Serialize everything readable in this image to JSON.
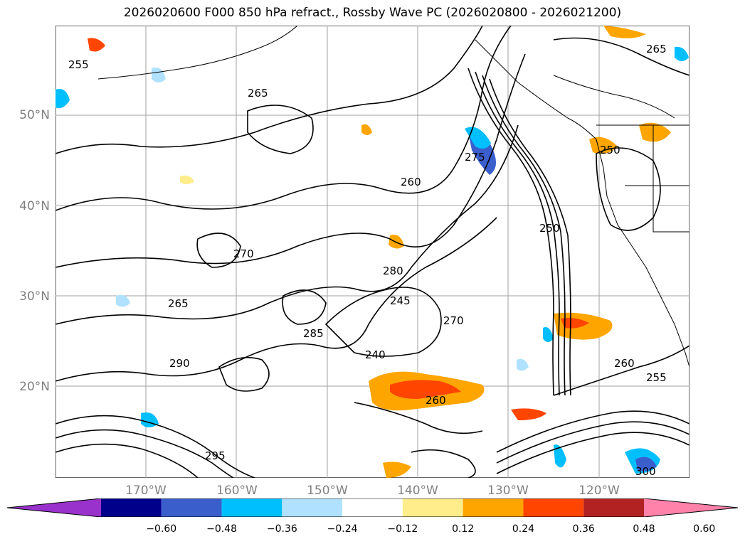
{
  "title": "2026020600 F000 850 hPa refract., Rossby Wave PC (2026020800 - 2026021200)",
  "lat_labels": [
    "50°N",
    "40°N",
    "30°N",
    "20°N"
  ],
  "lon_labels": [
    "170°W",
    "160°W",
    "150°W",
    "140°W",
    "130°W",
    "120°W"
  ],
  "contour_labels": [
    "255",
    "265",
    "275",
    "260",
    "270",
    "280",
    "285",
    "290",
    "295",
    "300",
    "240",
    "245",
    "250",
    "250",
    "260",
    "265",
    "270",
    "255",
    "260",
    "265"
  ],
  "colorbar": {
    "ticks": [
      "−0.60",
      "−0.48",
      "−0.36",
      "−0.24",
      "−0.12",
      "0.12",
      "0.24",
      "0.36",
      "0.48",
      "0.60"
    ],
    "colors": {
      "under": "#9932cc",
      "bins": [
        "#9932cc",
        "#00008b",
        "#3a5fcd",
        "#00bfff",
        "#b0e2ff",
        "#ffffff",
        "#ffec8b",
        "#ffa500",
        "#ff4500",
        "#b22222",
        "#ff82ab"
      ],
      "over": "#ff82ab"
    }
  },
  "colors": {
    "contour": "#000000",
    "grid": "#a0a0a0",
    "coast": "#000000"
  }
}
